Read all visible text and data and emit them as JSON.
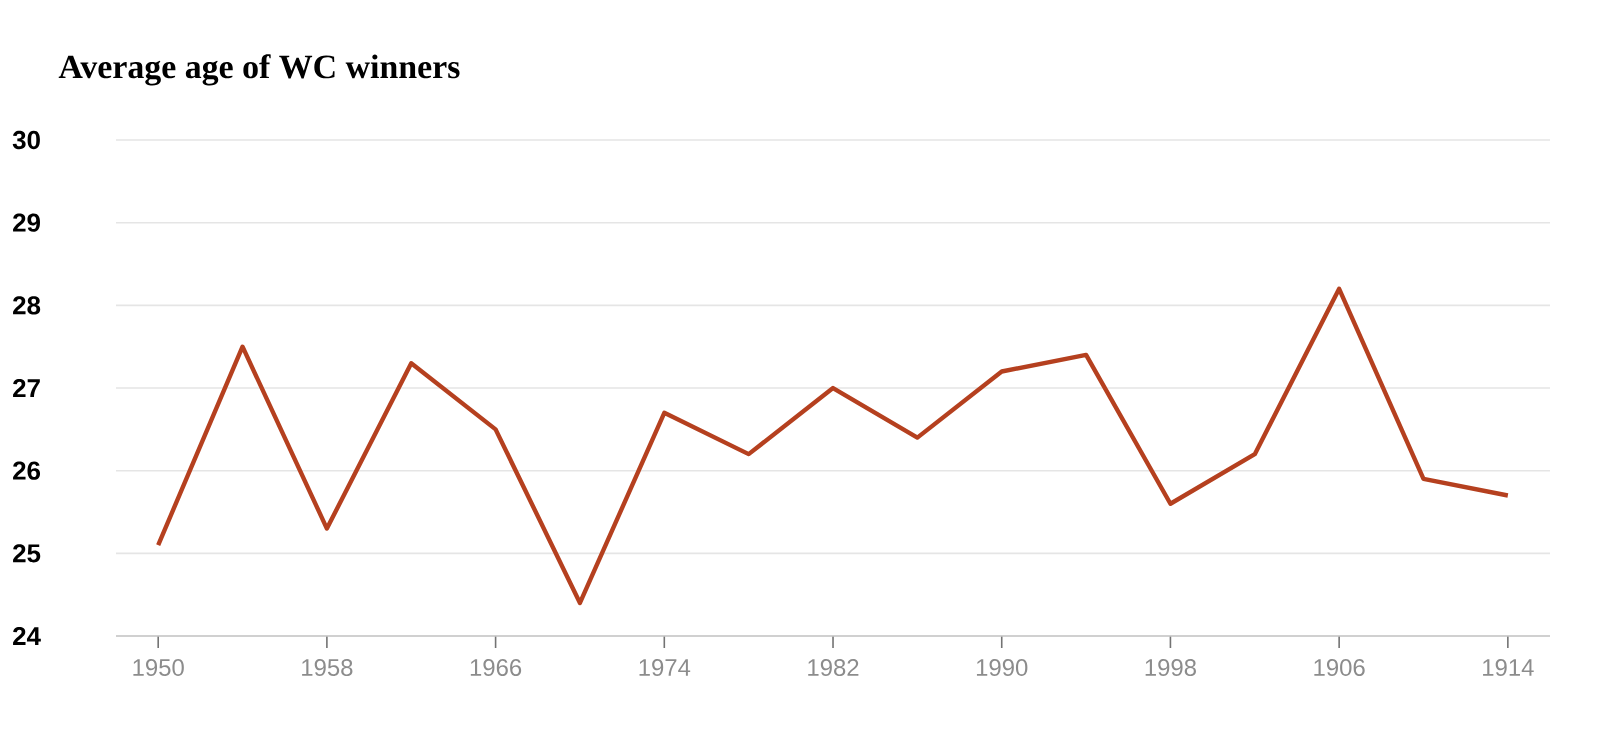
{
  "chart_data": {
    "type": "line",
    "title": "Average age of WC winners",
    "categories": [
      "1950",
      null,
      "1958",
      null,
      "1966",
      null,
      "1974",
      null,
      "1982",
      null,
      "1990",
      null,
      "1998",
      null,
      "1906",
      null,
      "1914"
    ],
    "values": [
      25.1,
      27.5,
      25.3,
      27.3,
      26.5,
      24.4,
      26.7,
      26.2,
      27.0,
      26.4,
      27.2,
      27.4,
      25.6,
      26.2,
      28.2,
      25.9,
      25.7
    ],
    "color": "#b5401f",
    "ylim": [
      24,
      30
    ],
    "yticks": [
      24,
      25,
      26,
      27,
      28,
      29,
      30
    ],
    "grid": "y"
  }
}
